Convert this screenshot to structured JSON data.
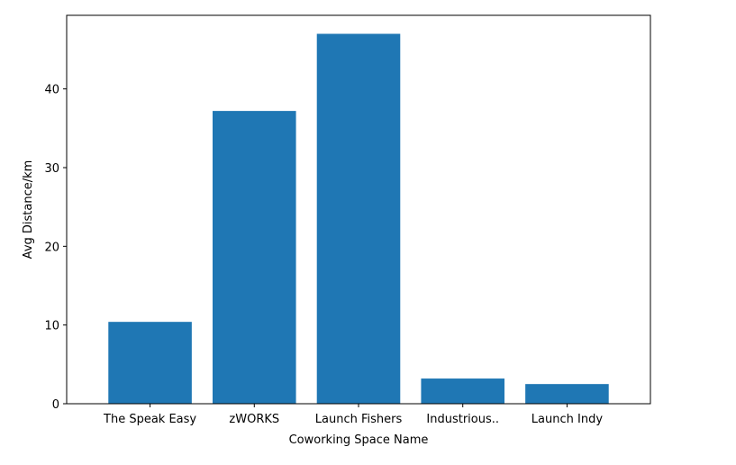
{
  "chart_data": {
    "type": "bar",
    "title": "",
    "xlabel": "Coworking Space Name",
    "ylabel": "Avg Distance/km",
    "categories": [
      "The Speak Easy",
      "zWORKS",
      "Launch Fishers",
      "Industrious..",
      "Launch Indy"
    ],
    "values": [
      10.4,
      37.2,
      47.0,
      3.2,
      2.5
    ],
    "ylim": [
      0,
      49.35
    ],
    "yticks": [
      0,
      10,
      20,
      30,
      40
    ],
    "grid": false,
    "colors": {
      "bar": "#1f77b4",
      "axis": "#000000",
      "background": "#ffffff"
    }
  }
}
